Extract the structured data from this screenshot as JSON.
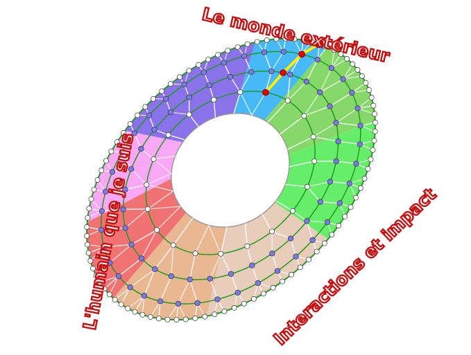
{
  "labels": {
    "top": "Le monde extérieur",
    "left": "L'humain que je suis",
    "right": "Interactions et impact"
  },
  "colors": {
    "label": "#c41010",
    "ring_line": "#1f9a1f",
    "highlight_path": "#ffee00",
    "highlight_nodes": "#e00000",
    "node_fill": "#7b78e8",
    "edge_node_fill": "#ffffff"
  },
  "sectors": [
    {
      "name": "blue",
      "color": "#47b9f7"
    },
    {
      "name": "dark-green",
      "color": "#86d86a"
    },
    {
      "name": "green",
      "color": "#66ee6a"
    },
    {
      "name": "beige",
      "color": "#e8cdba"
    },
    {
      "name": "tan",
      "color": "#e9b892"
    },
    {
      "name": "red",
      "color": "#f07272"
    },
    {
      "name": "pink",
      "color": "#f8a8f4"
    },
    {
      "name": "purple",
      "color": "#8a72ea"
    }
  ]
}
